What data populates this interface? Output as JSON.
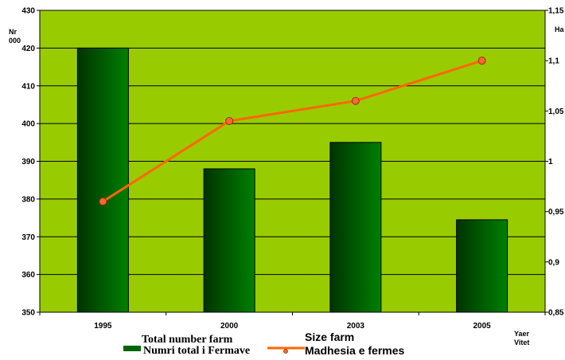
{
  "chart_data": {
    "type": "bar",
    "categories": [
      "1995",
      "2000",
      "2003",
      "2005"
    ],
    "series": [
      {
        "type": "bar",
        "values": [
          420,
          388,
          395,
          374.5
        ],
        "axis": "left",
        "color": "#006600"
      },
      {
        "type": "line",
        "values": [
          0.96,
          1.04,
          1.06,
          1.1
        ],
        "axis": "right",
        "color": "#ff6600",
        "marker_color": "#ff6633"
      }
    ],
    "ylabel_left": [
      "Nr",
      "000"
    ],
    "ylabel_right": "Ha",
    "xlabel": [
      "Yaer",
      "Vitet"
    ],
    "ylim_left": [
      350,
      430
    ],
    "ylim_right": [
      0.85,
      1.15
    ],
    "yticks_left": [
      "350",
      "360",
      "370",
      "380",
      "390",
      "400",
      "410",
      "420",
      "430"
    ],
    "yticks_right": [
      "0,85",
      "0,9",
      "0,95",
      "1",
      "1,05",
      "1,1",
      "1,15"
    ],
    "legend": {
      "bar_title": "Total number farm",
      "bar_label": "Numri total i Fermave",
      "line_title": "Size farm",
      "line_label": "Madhesia e fermes",
      "placement": "bottom"
    },
    "grid": true,
    "plot_background": "#99cc00"
  }
}
